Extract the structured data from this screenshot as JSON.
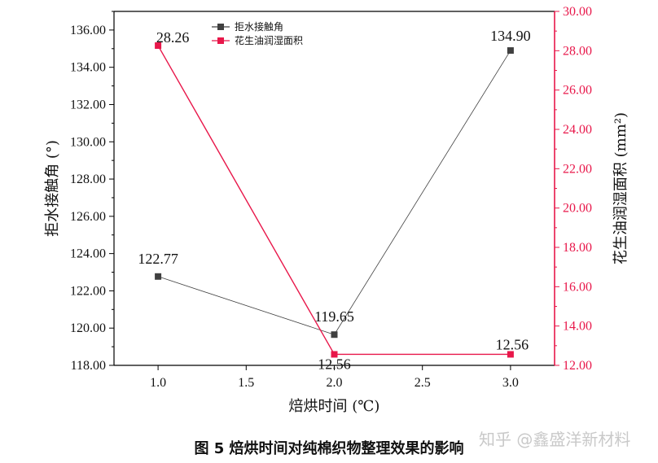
{
  "chart_data": {
    "type": "line",
    "title": "",
    "xlabel": "焙烘时间 (℃)",
    "ylabel_left": "拒水接触角 (°)",
    "ylabel_right": "花生油润湿面积 (mm²)",
    "x": [
      1.0,
      2.0,
      3.0
    ],
    "xlim": [
      0.75,
      3.25
    ],
    "x_ticks": [
      "1.0",
      "1.5",
      "2.0",
      "2.5",
      "3.0"
    ],
    "ylim_left": [
      118.0,
      137.0
    ],
    "y_ticks_left": [
      "118.00",
      "120.00",
      "122.00",
      "124.00",
      "126.00",
      "128.00",
      "130.00",
      "132.00",
      "134.00",
      "136.00"
    ],
    "ylim_right": [
      12.0,
      30.0
    ],
    "y_ticks_right": [
      "12.00",
      "14.00",
      "16.00",
      "18.00",
      "20.00",
      "22.00",
      "24.00",
      "26.00",
      "28.00",
      "30.00"
    ],
    "grid": false,
    "legend_position": "top-center",
    "series": [
      {
        "name": "拒水接触角",
        "axis": "left",
        "color": "#404040",
        "values": [
          122.77,
          119.65,
          134.9
        ],
        "labels": [
          "122.77",
          "119.65",
          "134.90"
        ]
      },
      {
        "name": "花生油润湿面积",
        "axis": "right",
        "color": "#e8174a",
        "values": [
          28.26,
          12.56,
          12.56
        ],
        "labels": [
          "28.26",
          "12.56",
          "12.56"
        ]
      }
    ]
  },
  "caption": "图 5    焙烘时间对纯棉织物整理效果的影响",
  "watermark": "知乎 @鑫盛洋新材料"
}
